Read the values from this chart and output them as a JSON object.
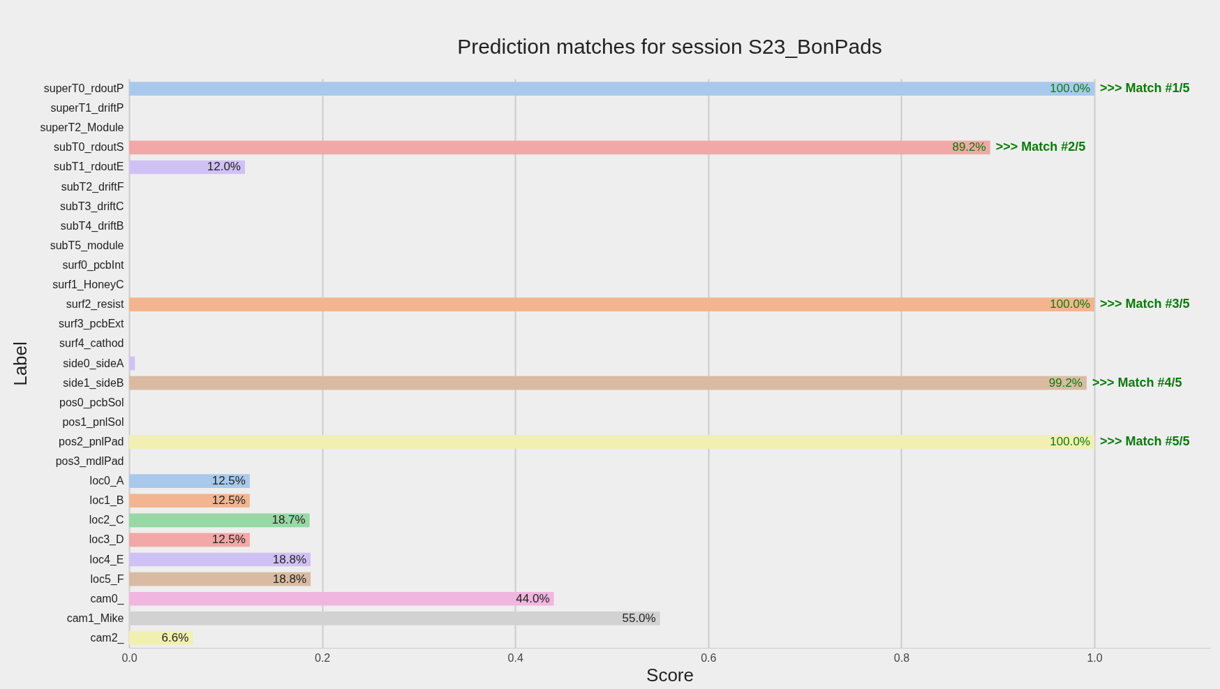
{
  "chart_data": {
    "type": "bar",
    "orientation": "horizontal",
    "title": "Prediction matches for session S23_BonPads",
    "xlabel": "Score",
    "ylabel": "Label",
    "categories": [
      "superT0_rdoutP",
      "superT1_driftP",
      "superT2_Module",
      "subT0_rdoutS",
      "subT1_rdoutE",
      "subT2_driftF",
      "subT3_driftC",
      "subT4_driftB",
      "subT5_module",
      "surf0_pcbInt",
      "surf1_HoneyC",
      "surf2_resist",
      "surf3_pcbExt",
      "surf4_cathod",
      "side0_sideA",
      "side1_sideB",
      "pos0_pcbSol",
      "pos1_pnlSol",
      "pos2_pnlPad",
      "pos3_mdlPad",
      "loc0_A",
      "loc1_B",
      "loc2_C",
      "loc3_D",
      "loc4_E",
      "loc5_F",
      "cam0_",
      "cam1_Mike",
      "cam2_"
    ],
    "values": [
      1.0,
      0,
      0,
      0.892,
      0.12,
      0,
      0,
      0,
      0,
      0,
      0,
      1.0,
      0,
      0,
      0.006,
      0.992,
      0,
      0,
      1.0,
      0,
      0.125,
      0.125,
      0.187,
      0.125,
      0.188,
      0.188,
      0.44,
      0.55,
      0.066
    ],
    "value_labels": [
      "100.0%",
      null,
      null,
      "89.2%",
      "12.0%",
      null,
      null,
      null,
      null,
      null,
      null,
      "100.0%",
      null,
      null,
      null,
      "99.2%",
      null,
      null,
      "100.0%",
      null,
      "12.5%",
      "12.5%",
      "18.7%",
      "12.5%",
      "18.8%",
      "18.8%",
      "44.0%",
      "55.0%",
      "6.6%"
    ],
    "colors": [
      "#a9c9ec",
      "#f2b590",
      "#98d8a4",
      "#f1a8a6",
      "#d0c1f5",
      "#d8bba2",
      "#f0b6df",
      "#d2d2d2",
      "#f2f0b0",
      "#b9e6e6",
      "#a9c9ec",
      "#f2b590",
      "#98d8a4",
      "#f1a8a6",
      "#d0c1f5",
      "#d8bba2",
      "#f0b6df",
      "#d2d2d2",
      "#f2f0b0",
      "#b9e6e6",
      "#a9c9ec",
      "#f2b590",
      "#98d8a4",
      "#f1a8a6",
      "#d0c1f5",
      "#d8bba2",
      "#f0b6df",
      "#d2d2d2",
      "#f2f0b0"
    ],
    "xlim": [
      0,
      1.12
    ],
    "xticks": [
      {
        "value": 0,
        "label": "0.0"
      },
      {
        "value": 0.2,
        "label": "0.2"
      },
      {
        "value": 0.4,
        "label": "0.4"
      },
      {
        "value": 0.6,
        "label": "0.6"
      },
      {
        "value": 0.8,
        "label": "0.8"
      },
      {
        "value": 1.0,
        "label": "1.0"
      }
    ],
    "grid": "x",
    "annotations": [
      {
        "text": ">>> Match #1/5",
        "x": 1.0,
        "y": "superT0_rdoutP"
      },
      {
        "text": ">>> Match #2/5",
        "x": 0.892,
        "y": "subT0_rdoutS"
      },
      {
        "text": ">>> Match #3/5",
        "x": 1.0,
        "y": "surf2_resist"
      },
      {
        "text": ">>> Match #4/5",
        "x": 0.992,
        "y": "side1_sideB"
      },
      {
        "text": ">>> Match #5/5",
        "x": 1.0,
        "y": "pos2_pnlPad"
      }
    ]
  }
}
